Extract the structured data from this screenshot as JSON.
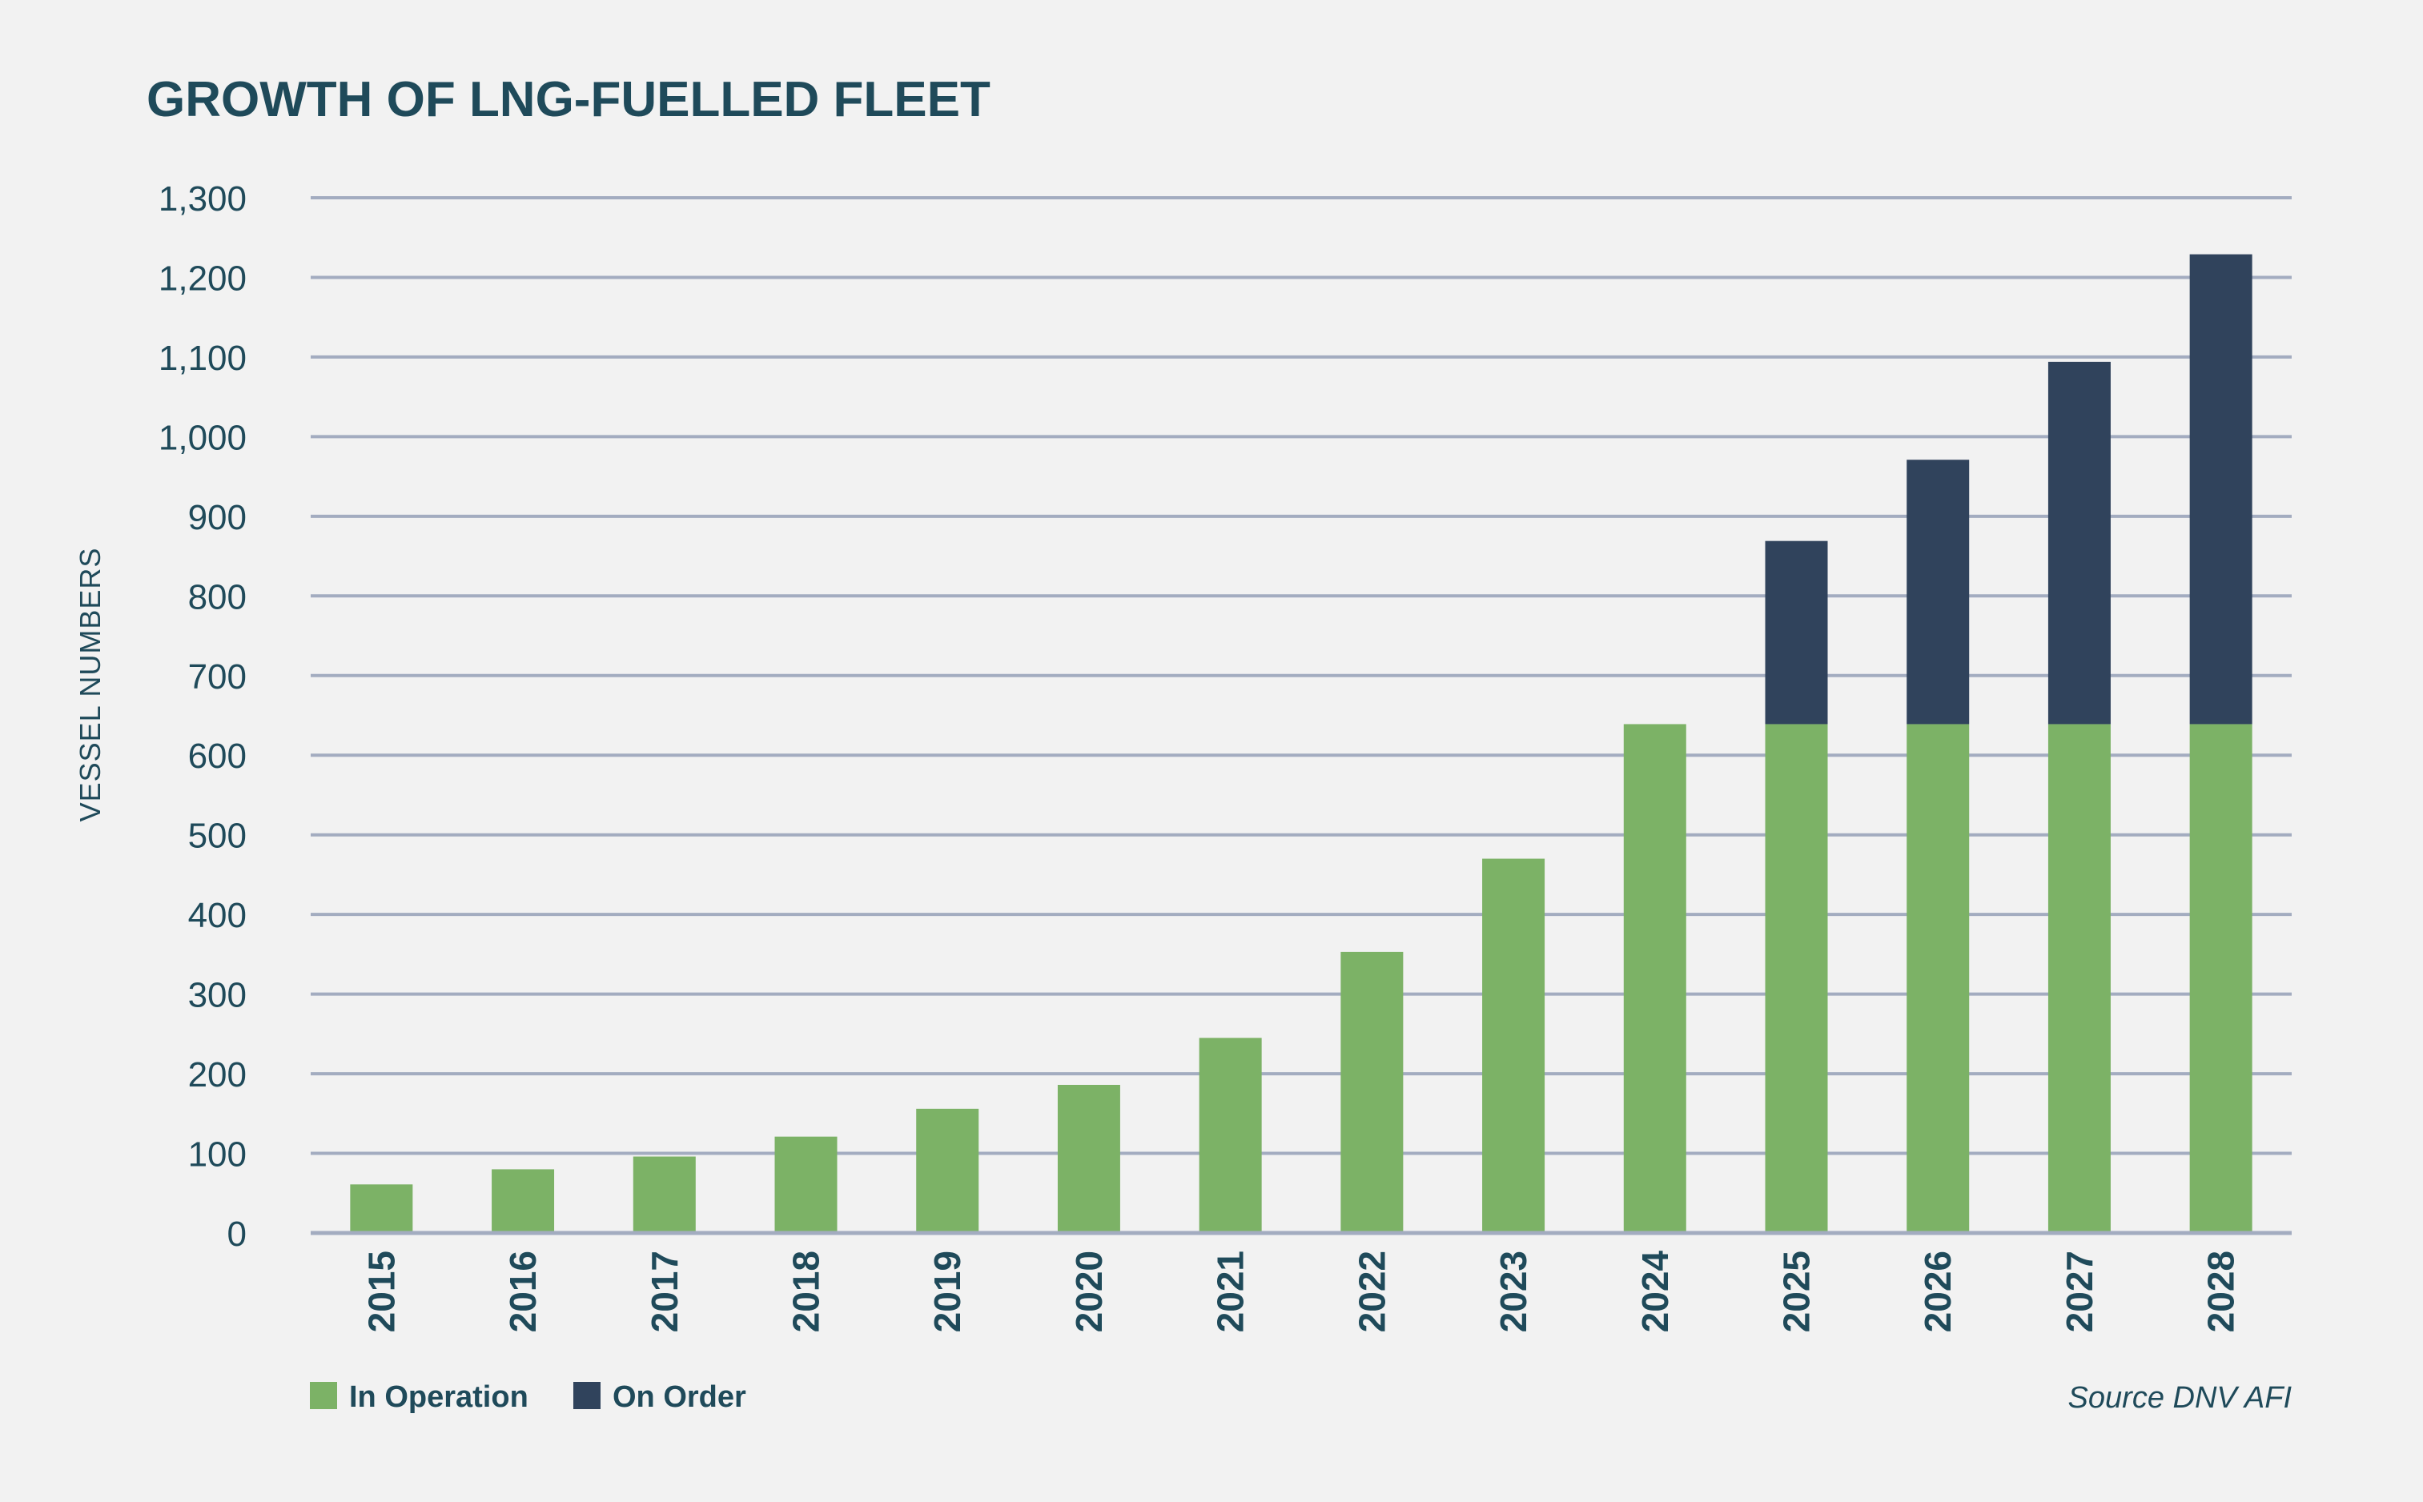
{
  "chart_data": {
    "type": "bar",
    "stacked": true,
    "title": "GROWTH OF LNG-FUELLED FLEET",
    "xlabel": "",
    "ylabel": "VESSEL NUMBERS",
    "ylim": [
      0,
      1300
    ],
    "yticks": [
      0,
      100,
      200,
      300,
      400,
      500,
      600,
      700,
      800,
      900,
      1000,
      1100,
      1200,
      1300
    ],
    "ytick_labels": [
      "0",
      "100",
      "200",
      "300",
      "400",
      "500",
      "600",
      "700",
      "800",
      "900",
      "1,000",
      "1,100",
      "1,200",
      "1,300"
    ],
    "grid": true,
    "legend_position": "bottom-left",
    "categories": [
      "2015",
      "2016",
      "2017",
      "2018",
      "2019",
      "2020",
      "2021",
      "2022",
      "2023",
      "2024",
      "2025",
      "2026",
      "2027",
      "2028"
    ],
    "series": [
      {
        "name": "In Operation",
        "color": "#7cb266",
        "values": [
          61,
          80,
          96,
          121,
          156,
          186,
          245,
          353,
          470,
          639,
          639,
          639,
          639,
          639
        ]
      },
      {
        "name": "On Order",
        "color": "#30435c",
        "values": [
          0,
          0,
          0,
          0,
          0,
          0,
          0,
          0,
          0,
          0,
          230,
          332,
          455,
          590
        ]
      }
    ],
    "source": "Source DNV AFI"
  }
}
